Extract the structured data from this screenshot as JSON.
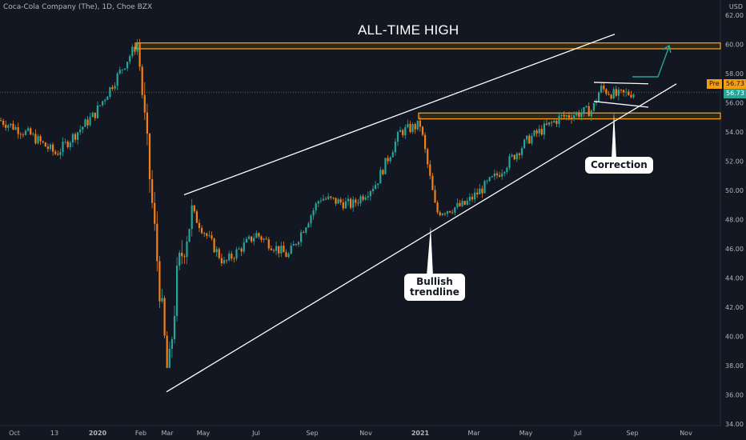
{
  "header": {
    "symbol_line": "Coca-Cola Company (The), 1D, Choe BZX",
    "currency": "USD"
  },
  "colors": {
    "background": "#131722",
    "up_candle": "#26a69a",
    "down_candle": "#f57f17",
    "resistance_zone": "#f59e0b",
    "trendline": "#ffffff",
    "arrow": "#26a69a",
    "axis_text": "#b2b5be"
  },
  "chart_data": {
    "type": "candlestick",
    "y_ticks": [
      "62.00",
      "60.00",
      "58.00",
      "56.00",
      "54.00",
      "52.00",
      "50.00",
      "48.00",
      "46.00",
      "44.00",
      "42.00",
      "40.00",
      "38.00",
      "36.00",
      "34.00"
    ],
    "ylim": [
      34,
      62
    ],
    "x_ticks": [
      "Oct",
      "13",
      "2020",
      "Feb",
      "Mar",
      "May",
      "Jul",
      "Sep",
      "Nov",
      "2021",
      "Mar",
      "May",
      "Jul",
      "Sep",
      "Nov"
    ],
    "x_ticks_bold": [
      "2020",
      "2021"
    ],
    "series_path": [
      {
        "x": "Oct 2019",
        "y": 54.8
      },
      {
        "x": "Nov 2019",
        "y": 53.8
      },
      {
        "x": "Dec 2019",
        "y": 52.5
      },
      {
        "x": "Jan 2020",
        "y": 55.2
      },
      {
        "x": "Feb 2020",
        "y": 59.5
      },
      {
        "x": "late Feb 2020",
        "y": 60.1
      },
      {
        "x": "early Mar 2020",
        "y": 51.5
      },
      {
        "x": "mid Mar 2020",
        "y": 37.0
      },
      {
        "x": "late Mar 2020",
        "y": 44.5
      },
      {
        "x": "Apr 2020",
        "y": 48.5
      },
      {
        "x": "May 2020",
        "y": 45.0
      },
      {
        "x": "Jun 2020",
        "y": 47.0
      },
      {
        "x": "Jul 2020",
        "y": 45.5
      },
      {
        "x": "Aug 2020",
        "y": 49.5
      },
      {
        "x": "Sep 2020",
        "y": 49.0
      },
      {
        "x": "Oct 2020",
        "y": 50.5
      },
      {
        "x": "Nov 2020",
        "y": 54.0
      },
      {
        "x": "Dec 2020",
        "y": 54.5
      },
      {
        "x": "Jan 2021",
        "y": 48.5
      },
      {
        "x": "Feb 2021",
        "y": 49.0
      },
      {
        "x": "Mar 2021",
        "y": 51.0
      },
      {
        "x": "Apr 2021",
        "y": 53.5
      },
      {
        "x": "May 2021",
        "y": 55.0
      },
      {
        "x": "Jun 2021",
        "y": 55.5
      },
      {
        "x": "Jul 2021",
        "y": 57.0
      },
      {
        "x": "Aug 2021",
        "y": 56.5
      },
      {
        "x": "Sep 2021",
        "y": 56.7
      }
    ],
    "annotations": {
      "ath_label": "ALL-TIME HIGH",
      "ath_zone": [
        59.7,
        60.1
      ],
      "support_zone": [
        54.9,
        55.3
      ],
      "correction_label": "Correction",
      "trendline_label_1": "Bullish",
      "trendline_label_2": "trendline"
    },
    "price_tags": {
      "pre_label": "Pre",
      "pre_value": "56.73",
      "last_value": "56.73"
    }
  }
}
